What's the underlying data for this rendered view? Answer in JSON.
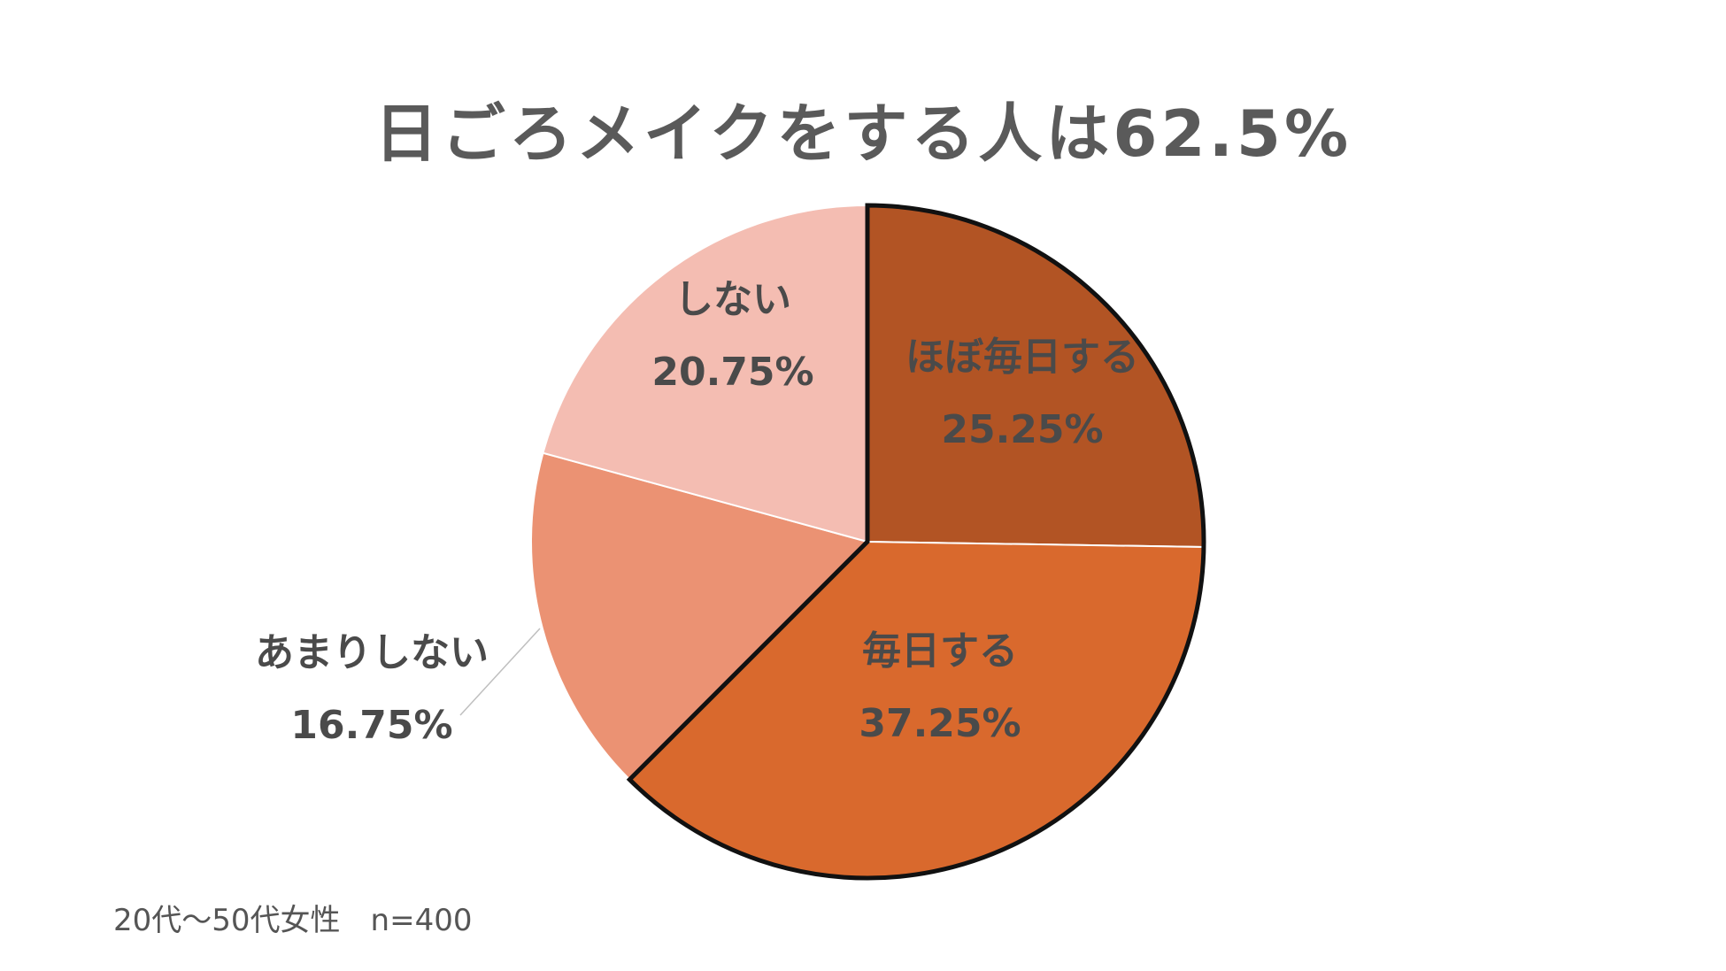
{
  "chart_data": {
    "type": "pie",
    "title": "日ごろメイクをする人は62.5%",
    "slices": [
      {
        "label": "ほぼ毎日する",
        "value": 25.25,
        "value_label": "25.25%",
        "color": "#B25424",
        "highlight": true
      },
      {
        "label": "毎日する",
        "value": 37.25,
        "value_label": "37.25%",
        "color": "#D9692D",
        "highlight": true
      },
      {
        "label": "あまりしない",
        "value": 16.75,
        "value_label": "16.75%",
        "color": "#EB9273",
        "highlight": false
      },
      {
        "label": "しない",
        "value": 20.75,
        "value_label": "20.75%",
        "color": "#F4BDB2",
        "highlight": false
      }
    ],
    "start_angle": "12 o'clock",
    "direction": "clockwise",
    "highlight_group": "日ごろメイクをする"
  },
  "footnote": "20代～50代女性　n=400"
}
